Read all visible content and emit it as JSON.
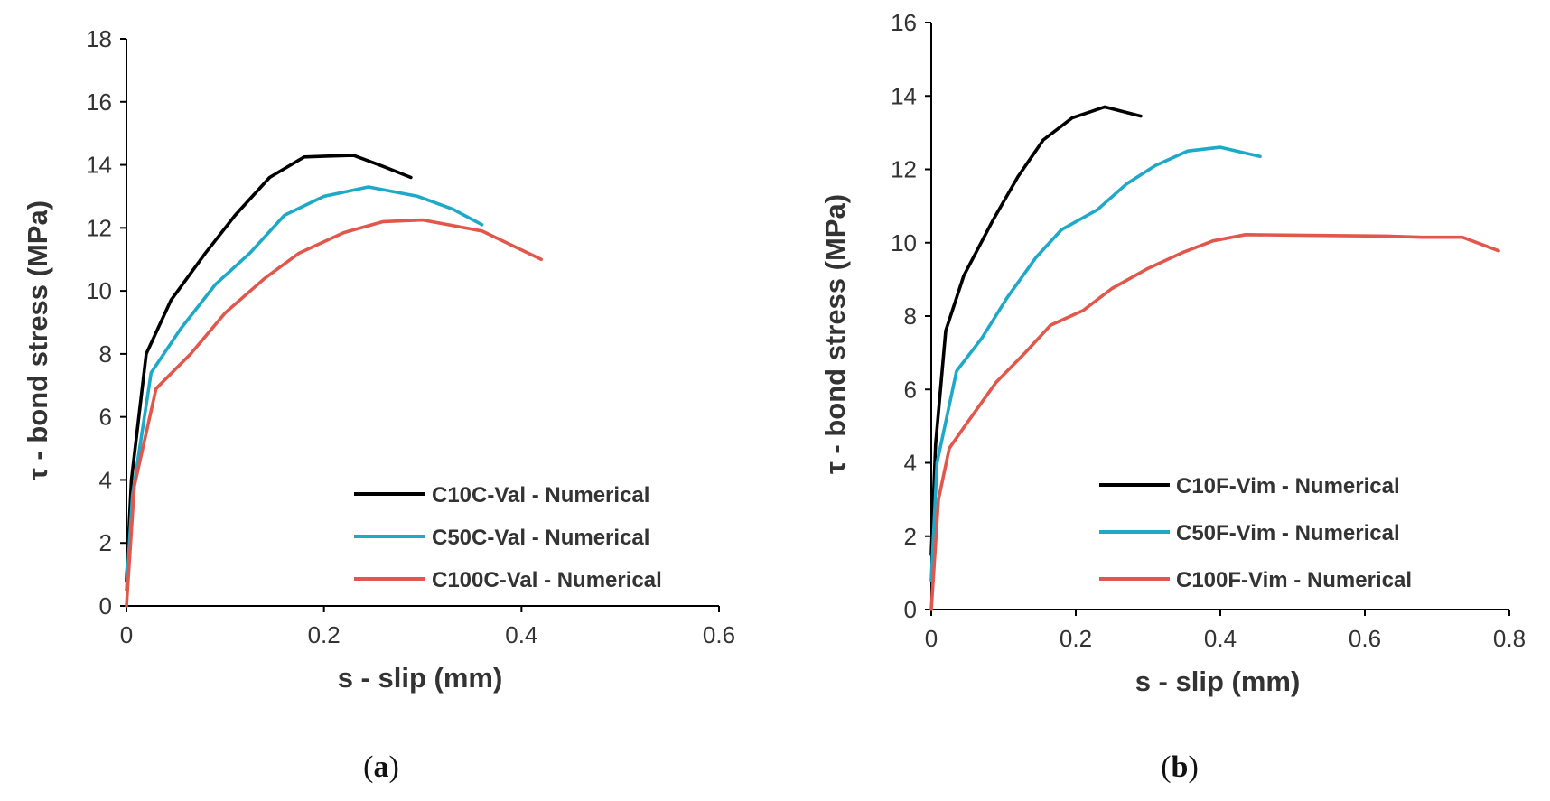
{
  "chart_data": [
    {
      "type": "line",
      "panel": "a",
      "caption": {
        "open": "(",
        "letter": "a",
        "close": ")"
      },
      "xlabel": "s - slip (mm)",
      "ylabel": "τ - bond stress (MPa)",
      "xlim": [
        0,
        0.6
      ],
      "ylim": [
        0,
        18
      ],
      "xticks": [
        0,
        0.2,
        0.4,
        0.6
      ],
      "yticks": [
        0,
        2,
        4,
        6,
        8,
        10,
        12,
        14,
        16,
        18
      ],
      "grid": false,
      "legend_position": "bottom-right",
      "series": [
        {
          "name": "C10C-Val - Numerical",
          "color": "#000000",
          "x": [
            0,
            0.005,
            0.02,
            0.045,
            0.08,
            0.11,
            0.145,
            0.18,
            0.205,
            0.23,
            0.26,
            0.288
          ],
          "y": [
            0.8,
            4.0,
            8.0,
            9.7,
            11.2,
            12.4,
            13.6,
            14.25,
            14.28,
            14.3,
            13.95,
            13.6
          ]
        },
        {
          "name": "C50C-Val - Numerical",
          "color": "#1FA9C9",
          "x": [
            0,
            0.006,
            0.025,
            0.055,
            0.09,
            0.125,
            0.16,
            0.2,
            0.245,
            0.295,
            0.33,
            0.36
          ],
          "y": [
            0.5,
            3.5,
            7.4,
            8.8,
            10.2,
            11.2,
            12.4,
            13.0,
            13.3,
            13.0,
            12.6,
            12.1
          ]
        },
        {
          "name": "C100C-Val - Numerical",
          "color": "#E2574C",
          "x": [
            0,
            0.008,
            0.03,
            0.065,
            0.1,
            0.14,
            0.175,
            0.22,
            0.26,
            0.3,
            0.36,
            0.42
          ],
          "y": [
            0,
            3.8,
            6.9,
            8.0,
            9.3,
            10.4,
            11.2,
            11.85,
            12.2,
            12.25,
            11.9,
            11.0
          ]
        }
      ]
    },
    {
      "type": "line",
      "panel": "b",
      "caption": {
        "open": "(",
        "letter": "b",
        "close": ")"
      },
      "xlabel": "s - slip (mm)",
      "ylabel": "τ - bond stress (MPa)",
      "xlim": [
        0,
        0.8
      ],
      "ylim": [
        0,
        16
      ],
      "xticks": [
        0,
        0.2,
        0.4,
        0.6,
        0.8
      ],
      "yticks": [
        0,
        2,
        4,
        6,
        8,
        10,
        12,
        14,
        16
      ],
      "grid": false,
      "legend_position": "bottom-right",
      "series": [
        {
          "name": "C10F-Vim - Numerical",
          "color": "#000000",
          "x": [
            0,
            0.006,
            0.02,
            0.045,
            0.085,
            0.12,
            0.155,
            0.195,
            0.24,
            0.29
          ],
          "y": [
            1.5,
            4.5,
            7.6,
            9.1,
            10.6,
            11.8,
            12.8,
            13.4,
            13.7,
            13.45
          ]
        },
        {
          "name": "C50F-Vim - Numerical",
          "color": "#1FA9C9",
          "x": [
            0,
            0.008,
            0.035,
            0.07,
            0.105,
            0.145,
            0.18,
            0.23,
            0.27,
            0.31,
            0.355,
            0.4,
            0.455
          ],
          "y": [
            0.8,
            4.0,
            6.5,
            7.4,
            8.5,
            9.6,
            10.35,
            10.9,
            11.6,
            12.1,
            12.5,
            12.6,
            12.35
          ]
        },
        {
          "name": "C100F-Vim - Numerical",
          "color": "#E2574C",
          "x": [
            0,
            0.01,
            0.025,
            0.05,
            0.09,
            0.13,
            0.165,
            0.21,
            0.25,
            0.3,
            0.35,
            0.39,
            0.435,
            0.52,
            0.63,
            0.68,
            0.735,
            0.785
          ],
          "y": [
            0,
            3.0,
            4.4,
            5.1,
            6.2,
            7.0,
            7.75,
            8.15,
            8.75,
            9.3,
            9.75,
            10.05,
            10.22,
            10.2,
            10.18,
            10.15,
            10.15,
            9.78
          ]
        }
      ]
    }
  ]
}
